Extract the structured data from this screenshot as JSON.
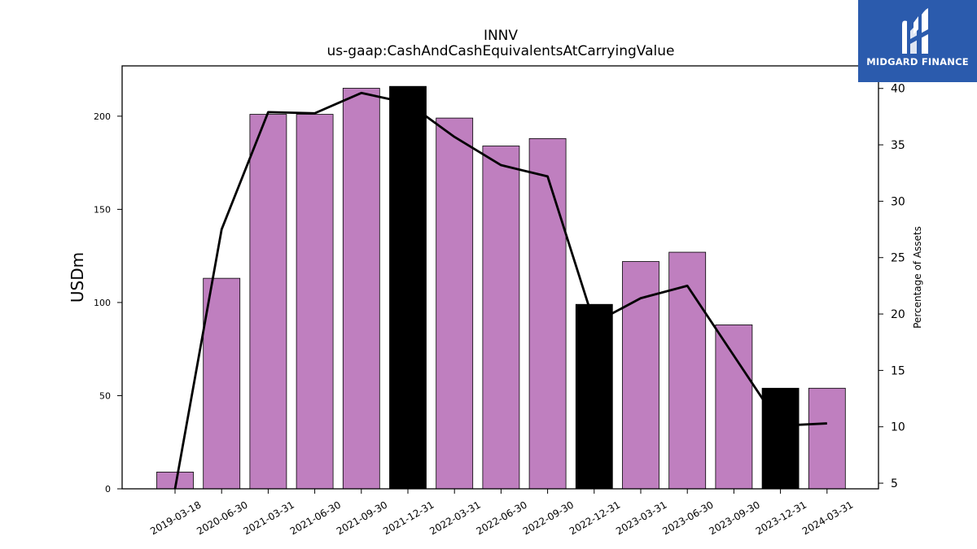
{
  "chart_data": {
    "type": "bar",
    "title": "INNV",
    "subtitle": "us-gaap:CashAndCashEquivalentsAtCarryingValue",
    "ylabel": "USDm",
    "y2label": "Percentage of Assets",
    "categories": [
      "2019-03-18",
      "2020-06-30",
      "2021-03-31",
      "2021-06-30",
      "2021-09-30",
      "2021-12-31",
      "2022-03-31",
      "2022-06-30",
      "2022-09-30",
      "2022-12-31",
      "2023-03-31",
      "2023-06-30",
      "2023-09-30",
      "2023-12-31",
      "2024-03-31"
    ],
    "values": [
      9,
      113,
      201,
      201,
      215,
      216,
      199,
      184,
      188,
      99,
      122,
      127,
      88,
      54,
      54
    ],
    "highlighted": [
      false,
      false,
      false,
      false,
      false,
      true,
      false,
      false,
      false,
      true,
      false,
      false,
      false,
      true,
      false
    ],
    "line_values": [
      4.5,
      27.5,
      37.9,
      37.8,
      39.6,
      38.7,
      35.7,
      33.2,
      32.2,
      19.2,
      21.4,
      22.5,
      16.3,
      10.1,
      10.3
    ],
    "ylim": [
      0,
      227
    ],
    "y2lim": [
      4.5,
      42.0
    ],
    "yticks": [
      0,
      50,
      100,
      150,
      200
    ],
    "y2ticks": [
      5,
      10,
      15,
      20,
      25,
      30,
      35,
      40
    ],
    "bar_color": "#bf7fbf",
    "highlight_color": "#000000",
    "line_color": "#000000"
  },
  "logo": {
    "text": "MIDGARD FINANCE",
    "background": "#2b5bad"
  }
}
